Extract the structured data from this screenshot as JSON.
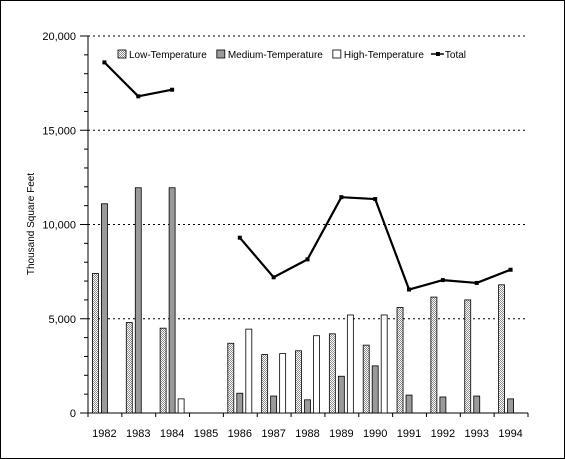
{
  "chart_data": {
    "type": "bar",
    "title": "",
    "xlabel": "",
    "ylabel": "Thousand Square Feet",
    "ylim": [
      0,
      20000
    ],
    "yticks": [
      0,
      5000,
      10000,
      15000,
      20000
    ],
    "ytick_labels": [
      "0",
      "5,000",
      "10,000",
      "15,000",
      "20,000"
    ],
    "grid": "horizontal-dotted",
    "legend_position": "top",
    "categories": [
      "1982",
      "1983",
      "1984",
      "1985",
      "1986",
      "1987",
      "1988",
      "1989",
      "1990",
      "1991",
      "1992",
      "1993",
      "1994"
    ],
    "series": [
      {
        "name": "Low-Temperature",
        "kind": "bar",
        "fill": "#d8d8d8",
        "values": [
          7400,
          4800,
          4500,
          null,
          3700,
          3100,
          3300,
          4200,
          3600,
          5600,
          6150,
          6000,
          6800
        ]
      },
      {
        "name": "Medium-Temperature",
        "kind": "bar",
        "fill": "#9a9a9a",
        "values": [
          11100,
          11950,
          11950,
          null,
          1050,
          900,
          700,
          1950,
          2500,
          950,
          850,
          900,
          750
        ]
      },
      {
        "name": "High-Temperature",
        "kind": "bar",
        "fill": "#ffffff",
        "values": [
          null,
          null,
          750,
          null,
          4450,
          3150,
          4100,
          5200,
          5200,
          null,
          null,
          null,
          null
        ]
      },
      {
        "name": "Total",
        "kind": "line",
        "color": "#000000",
        "values": [
          18600,
          16800,
          17150,
          null,
          9300,
          7200,
          8150,
          11450,
          11350,
          6550,
          7050,
          6900,
          7600
        ]
      }
    ]
  }
}
